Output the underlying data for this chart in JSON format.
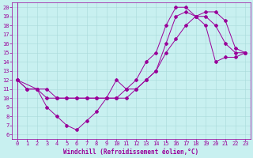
{
  "xlabel": "Windchill (Refroidissement éolien,°C)",
  "bg_color": "#c8f0f0",
  "line_color": "#990099",
  "grid_color": "#a8dada",
  "xlim": [
    -0.5,
    23.5
  ],
  "ylim": [
    5.5,
    20.5
  ],
  "xticks": [
    0,
    1,
    2,
    3,
    4,
    5,
    6,
    7,
    8,
    9,
    10,
    11,
    12,
    13,
    14,
    15,
    16,
    17,
    18,
    19,
    20,
    21,
    22,
    23
  ],
  "yticks": [
    6,
    7,
    8,
    9,
    10,
    11,
    12,
    13,
    14,
    15,
    16,
    17,
    18,
    19,
    20
  ],
  "line1_x": [
    0,
    1,
    2,
    3,
    4,
    5,
    6,
    7,
    8,
    9,
    10,
    11,
    12,
    13,
    14,
    15,
    16,
    17,
    18,
    19,
    20,
    21,
    22,
    23
  ],
  "line1_y": [
    12,
    11,
    11,
    9,
    8,
    7,
    6.5,
    7.5,
    8.5,
    10,
    12,
    11,
    12,
    14,
    15,
    18,
    20,
    20,
    19,
    19,
    18,
    16,
    15,
    15
  ],
  "line2_x": [
    0,
    1,
    2,
    3,
    4,
    5,
    6,
    7,
    8,
    9,
    10,
    11,
    12,
    13,
    14,
    15,
    16,
    17,
    18,
    19,
    20,
    21,
    22,
    23
  ],
  "line2_y": [
    12,
    11,
    11,
    10,
    10,
    10,
    10,
    10,
    10,
    10,
    10,
    11,
    11,
    12,
    13,
    15,
    16.5,
    18,
    19,
    19.5,
    19.5,
    18.5,
    15.5,
    15
  ],
  "line3_x": [
    0,
    2,
    3,
    4,
    5,
    6,
    7,
    8,
    9,
    10,
    11,
    12,
    13,
    14,
    15,
    16,
    17,
    18,
    19,
    20,
    21,
    22,
    23
  ],
  "line3_y": [
    12,
    11,
    11,
    10,
    10,
    10,
    10,
    10,
    10,
    10,
    10,
    11,
    12,
    13,
    16,
    19,
    19.5,
    19,
    18,
    14,
    14.5,
    14.5,
    15
  ],
  "xlabel_fontsize": 5.5,
  "tick_fontsize": 5.0,
  "marker_size": 2.0,
  "line_width": 0.7
}
